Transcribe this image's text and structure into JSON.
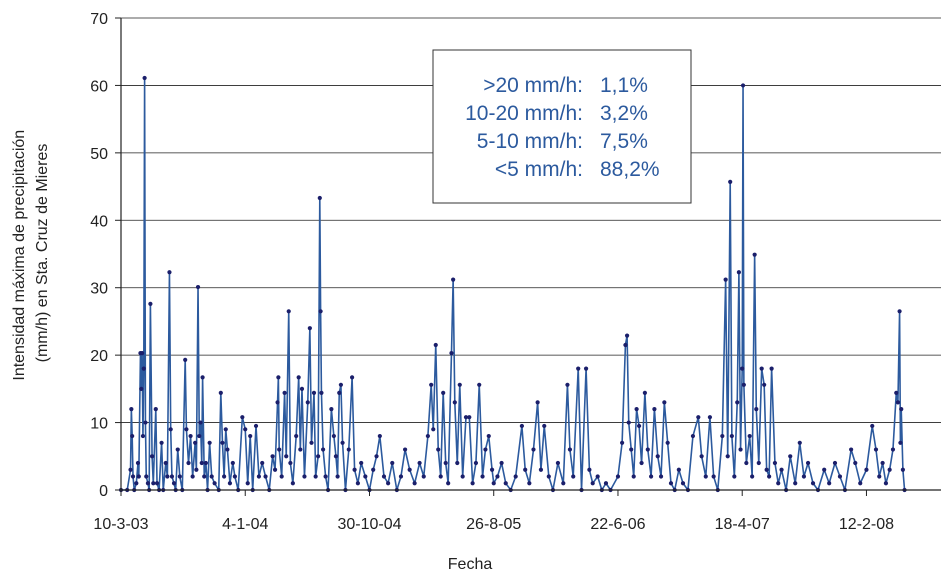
{
  "chart_data": {
    "type": "line",
    "xlabel": "Fecha",
    "ylabel_lines": [
      "Intensidad máxima de precipitación",
      "(mm/h) en Sta. Cruz de Mieres"
    ],
    "ylim": [
      0,
      70
    ],
    "yticks": [
      0,
      10,
      20,
      30,
      40,
      50,
      60,
      70
    ],
    "xlim": [
      "2003-03-10",
      "2008-08-10"
    ],
    "xticks": [
      {
        "date": "2003-03-10",
        "label": "10-3-03"
      },
      {
        "date": "2004-01-04",
        "label": "4-1-04"
      },
      {
        "date": "2004-10-30",
        "label": "30-10-04"
      },
      {
        "date": "2005-08-26",
        "label": "26-8-05"
      },
      {
        "date": "2006-06-22",
        "label": "22-6-06"
      },
      {
        "date": "2007-04-18",
        "label": "18-4-07"
      },
      {
        "date": "2008-02-12",
        "label": "12-2-08"
      }
    ],
    "grid": true,
    "series_color": "#2c5a9e",
    "marker_color": "#1b1f6b",
    "annotation": {
      "rows": [
        {
          "range": ">20 mm/h:",
          "pct": "1,1%"
        },
        {
          "range": "10-20 mm/h:",
          "pct": "3,2%"
        },
        {
          "range": "5-10 mm/h:",
          "pct": "7,5%"
        },
        {
          "range": "<5 mm/h:",
          "pct": "88,2%"
        }
      ]
    },
    "series": [
      {
        "points": [
          [
            "2003-03-10",
            0
          ],
          [
            "2003-03-25",
            0
          ],
          [
            "2003-04-02",
            3
          ],
          [
            "2003-04-04",
            12
          ],
          [
            "2003-04-06",
            8
          ],
          [
            "2003-04-08",
            2
          ],
          [
            "2003-04-11",
            0
          ],
          [
            "2003-04-16",
            1
          ],
          [
            "2003-04-20",
            4
          ],
          [
            "2003-04-22",
            2
          ],
          [
            "2003-04-26",
            20.3
          ],
          [
            "2003-04-28",
            15
          ],
          [
            "2003-04-30",
            20.3
          ],
          [
            "2003-05-02",
            8
          ],
          [
            "2003-05-04",
            18
          ],
          [
            "2003-05-06",
            61.1
          ],
          [
            "2003-05-08",
            10
          ],
          [
            "2003-05-10",
            2
          ],
          [
            "2003-05-14",
            1
          ],
          [
            "2003-05-17",
            0
          ],
          [
            "2003-05-20",
            27.6
          ],
          [
            "2003-05-24",
            5
          ],
          [
            "2003-05-27",
            1
          ],
          [
            "2003-06-02",
            12
          ],
          [
            "2003-06-05",
            1
          ],
          [
            "2003-06-10",
            0
          ],
          [
            "2003-06-16",
            7
          ],
          [
            "2003-06-20",
            0
          ],
          [
            "2003-06-26",
            4
          ],
          [
            "2003-06-30",
            2
          ],
          [
            "2003-07-05",
            32.3
          ],
          [
            "2003-07-08",
            9
          ],
          [
            "2003-07-11",
            2
          ],
          [
            "2003-07-16",
            1
          ],
          [
            "2003-07-20",
            0
          ],
          [
            "2003-07-25",
            6
          ],
          [
            "2003-07-30",
            2
          ],
          [
            "2003-08-05",
            0
          ],
          [
            "2003-08-12",
            19.3
          ],
          [
            "2003-08-15",
            9
          ],
          [
            "2003-08-20",
            4
          ],
          [
            "2003-08-25",
            8
          ],
          [
            "2003-08-30",
            2
          ],
          [
            "2003-09-05",
            7
          ],
          [
            "2003-09-08",
            3
          ],
          [
            "2003-09-12",
            30.1
          ],
          [
            "2003-09-15",
            8
          ],
          [
            "2003-09-18",
            10
          ],
          [
            "2003-09-21",
            4
          ],
          [
            "2003-09-23",
            16.7
          ],
          [
            "2003-09-27",
            2
          ],
          [
            "2003-10-01",
            4
          ],
          [
            "2003-10-05",
            0
          ],
          [
            "2003-10-10",
            7
          ],
          [
            "2003-10-15",
            2
          ],
          [
            "2003-10-22",
            1
          ],
          [
            "2003-11-01",
            0
          ],
          [
            "2003-11-06",
            14.4
          ],
          [
            "2003-11-10",
            7
          ],
          [
            "2003-11-14",
            2
          ],
          [
            "2003-11-18",
            9
          ],
          [
            "2003-11-22",
            6
          ],
          [
            "2003-11-28",
            1
          ],
          [
            "2003-12-05",
            4
          ],
          [
            "2003-12-10",
            2
          ],
          [
            "2003-12-18",
            0
          ],
          [
            "2003-12-28",
            10.8
          ],
          [
            "2004-01-04",
            9
          ],
          [
            "2004-01-10",
            1
          ],
          [
            "2004-01-16",
            8
          ],
          [
            "2004-01-22",
            0
          ],
          [
            "2004-01-30",
            9.5
          ],
          [
            "2004-02-06",
            2
          ],
          [
            "2004-02-14",
            4
          ],
          [
            "2004-02-22",
            2
          ],
          [
            "2004-03-02",
            0
          ],
          [
            "2004-03-10",
            5
          ],
          [
            "2004-03-16",
            3
          ],
          [
            "2004-03-22",
            13
          ],
          [
            "2004-03-24",
            16.7
          ],
          [
            "2004-03-26",
            6
          ],
          [
            "2004-04-01",
            2
          ],
          [
            "2004-04-08",
            14.4
          ],
          [
            "2004-04-12",
            5
          ],
          [
            "2004-04-18",
            26.5
          ],
          [
            "2004-04-22",
            4
          ],
          [
            "2004-04-28",
            1
          ],
          [
            "2004-05-06",
            8
          ],
          [
            "2004-05-12",
            16.7
          ],
          [
            "2004-05-16",
            6
          ],
          [
            "2004-05-20",
            15
          ],
          [
            "2004-05-26",
            2
          ],
          [
            "2004-06-03",
            13
          ],
          [
            "2004-06-08",
            24
          ],
          [
            "2004-06-12",
            7
          ],
          [
            "2004-06-18",
            14.4
          ],
          [
            "2004-06-22",
            2
          ],
          [
            "2004-06-28",
            5
          ],
          [
            "2004-07-02",
            43.3
          ],
          [
            "2004-07-04",
            26.5
          ],
          [
            "2004-07-06",
            14.4
          ],
          [
            "2004-07-10",
            6
          ],
          [
            "2004-07-16",
            2
          ],
          [
            "2004-07-22",
            0
          ],
          [
            "2004-07-30",
            12
          ],
          [
            "2004-08-05",
            8
          ],
          [
            "2004-08-10",
            5
          ],
          [
            "2004-08-14",
            2
          ],
          [
            "2004-08-18",
            14.4
          ],
          [
            "2004-08-22",
            15.6
          ],
          [
            "2004-08-26",
            7
          ],
          [
            "2004-09-02",
            0
          ],
          [
            "2004-09-10",
            6
          ],
          [
            "2004-09-18",
            16.7
          ],
          [
            "2004-09-24",
            3
          ],
          [
            "2004-10-02",
            1
          ],
          [
            "2004-10-10",
            4
          ],
          [
            "2004-10-20",
            2
          ],
          [
            "2004-10-30",
            0
          ],
          [
            "2004-11-08",
            3
          ],
          [
            "2004-11-16",
            5
          ],
          [
            "2004-11-24",
            8
          ],
          [
            "2004-12-04",
            2
          ],
          [
            "2004-12-14",
            1
          ],
          [
            "2004-12-24",
            4
          ],
          [
            "2005-01-04",
            0
          ],
          [
            "2005-01-14",
            2
          ],
          [
            "2005-01-24",
            6
          ],
          [
            "2005-02-04",
            3
          ],
          [
            "2005-02-16",
            1
          ],
          [
            "2005-02-28",
            4
          ],
          [
            "2005-03-10",
            2
          ],
          [
            "2005-03-20",
            8
          ],
          [
            "2005-03-28",
            15.6
          ],
          [
            "2005-04-02",
            9
          ],
          [
            "2005-04-08",
            21.5
          ],
          [
            "2005-04-14",
            6
          ],
          [
            "2005-04-20",
            2
          ],
          [
            "2005-04-26",
            14.4
          ],
          [
            "2005-05-02",
            4
          ],
          [
            "2005-05-08",
            1
          ],
          [
            "2005-05-16",
            20.3
          ],
          [
            "2005-05-20",
            31.2
          ],
          [
            "2005-05-24",
            13
          ],
          [
            "2005-05-30",
            4
          ],
          [
            "2005-06-05",
            15.6
          ],
          [
            "2005-06-12",
            2
          ],
          [
            "2005-06-20",
            10.8
          ],
          [
            "2005-06-28",
            10.8
          ],
          [
            "2005-07-06",
            1
          ],
          [
            "2005-07-14",
            4
          ],
          [
            "2005-07-22",
            15.6
          ],
          [
            "2005-07-30",
            2
          ],
          [
            "2005-08-06",
            6
          ],
          [
            "2005-08-14",
            8
          ],
          [
            "2005-08-22",
            3
          ],
          [
            "2005-08-26",
            1
          ],
          [
            "2005-09-04",
            2
          ],
          [
            "2005-09-14",
            4
          ],
          [
            "2005-09-24",
            1
          ],
          [
            "2005-10-06",
            0
          ],
          [
            "2005-10-18",
            2
          ],
          [
            "2005-11-02",
            9.5
          ],
          [
            "2005-11-10",
            3
          ],
          [
            "2005-11-20",
            1
          ],
          [
            "2005-11-30",
            6
          ],
          [
            "2005-12-10",
            13
          ],
          [
            "2005-12-18",
            3
          ],
          [
            "2005-12-26",
            9.5
          ],
          [
            "2006-01-06",
            2
          ],
          [
            "2006-01-16",
            0
          ],
          [
            "2006-01-28",
            4
          ],
          [
            "2006-02-10",
            1
          ],
          [
            "2006-02-20",
            15.6
          ],
          [
            "2006-02-26",
            6
          ],
          [
            "2006-03-06",
            2
          ],
          [
            "2006-03-18",
            18
          ],
          [
            "2006-03-26",
            0
          ],
          [
            "2006-04-06",
            18
          ],
          [
            "2006-04-14",
            3
          ],
          [
            "2006-04-22",
            1
          ],
          [
            "2006-05-04",
            2
          ],
          [
            "2006-05-14",
            0
          ],
          [
            "2006-05-24",
            1
          ],
          [
            "2006-06-04",
            0
          ],
          [
            "2006-06-22",
            2
          ],
          [
            "2006-07-02",
            7
          ],
          [
            "2006-07-10",
            21.5
          ],
          [
            "2006-07-14",
            22.9
          ],
          [
            "2006-07-18",
            10
          ],
          [
            "2006-07-24",
            6
          ],
          [
            "2006-07-30",
            2
          ],
          [
            "2006-08-06",
            12
          ],
          [
            "2006-08-12",
            9.5
          ],
          [
            "2006-08-18",
            4
          ],
          [
            "2006-08-26",
            14.4
          ],
          [
            "2006-09-02",
            6
          ],
          [
            "2006-09-10",
            2
          ],
          [
            "2006-09-18",
            12
          ],
          [
            "2006-09-26",
            5
          ],
          [
            "2006-10-04",
            2
          ],
          [
            "2006-10-12",
            13
          ],
          [
            "2006-10-20",
            7
          ],
          [
            "2006-10-28",
            1
          ],
          [
            "2006-11-06",
            0
          ],
          [
            "2006-11-16",
            3
          ],
          [
            "2006-11-26",
            1
          ],
          [
            "2006-12-08",
            0
          ],
          [
            "2006-12-20",
            8
          ],
          [
            "2007-01-02",
            10.8
          ],
          [
            "2007-01-10",
            5
          ],
          [
            "2007-01-20",
            2
          ],
          [
            "2007-01-30",
            10.8
          ],
          [
            "2007-02-08",
            2
          ],
          [
            "2007-02-18",
            0
          ],
          [
            "2007-03-01",
            8
          ],
          [
            "2007-03-09",
            31.2
          ],
          [
            "2007-03-14",
            5
          ],
          [
            "2007-03-20",
            45.7
          ],
          [
            "2007-03-24",
            8
          ],
          [
            "2007-03-30",
            2
          ],
          [
            "2007-04-06",
            13
          ],
          [
            "2007-04-10",
            32.3
          ],
          [
            "2007-04-14",
            6
          ],
          [
            "2007-04-18",
            18
          ],
          [
            "2007-04-20",
            60
          ],
          [
            "2007-04-22",
            15.6
          ],
          [
            "2007-04-28",
            4
          ],
          [
            "2007-05-06",
            8
          ],
          [
            "2007-05-12",
            2
          ],
          [
            "2007-05-18",
            34.9
          ],
          [
            "2007-05-22",
            12
          ],
          [
            "2007-05-28",
            4
          ],
          [
            "2007-06-04",
            18
          ],
          [
            "2007-06-10",
            15.6
          ],
          [
            "2007-06-16",
            3
          ],
          [
            "2007-06-22",
            2
          ],
          [
            "2007-06-28",
            18
          ],
          [
            "2007-07-06",
            4
          ],
          [
            "2007-07-14",
            1
          ],
          [
            "2007-07-22",
            3
          ],
          [
            "2007-08-02",
            0
          ],
          [
            "2007-08-12",
            5
          ],
          [
            "2007-08-24",
            1
          ],
          [
            "2007-09-04",
            7
          ],
          [
            "2007-09-14",
            2
          ],
          [
            "2007-09-24",
            4
          ],
          [
            "2007-10-06",
            1
          ],
          [
            "2007-10-18",
            0
          ],
          [
            "2007-11-02",
            3
          ],
          [
            "2007-11-14",
            1
          ],
          [
            "2007-11-28",
            4
          ],
          [
            "2007-12-10",
            2
          ],
          [
            "2007-12-22",
            0
          ],
          [
            "2008-01-06",
            6
          ],
          [
            "2008-01-16",
            4
          ],
          [
            "2008-01-28",
            1
          ],
          [
            "2008-02-12",
            3
          ],
          [
            "2008-02-26",
            9.5
          ],
          [
            "2008-03-06",
            6
          ],
          [
            "2008-03-14",
            2
          ],
          [
            "2008-03-22",
            4
          ],
          [
            "2008-03-30",
            1
          ],
          [
            "2008-04-08",
            3
          ],
          [
            "2008-04-16",
            6
          ],
          [
            "2008-04-24",
            14.4
          ],
          [
            "2008-04-28",
            13
          ],
          [
            "2008-05-02",
            26.5
          ],
          [
            "2008-05-04",
            7
          ],
          [
            "2008-05-06",
            12
          ],
          [
            "2008-05-10",
            3
          ],
          [
            "2008-05-14",
            0
          ]
        ]
      }
    ]
  }
}
